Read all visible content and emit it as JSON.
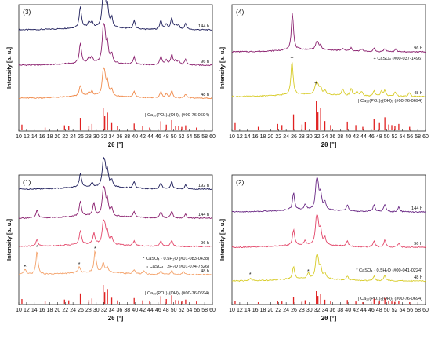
{
  "chart_data": [
    {
      "type": "line",
      "panel_label": "(3)",
      "xlabel": "2θ [°]",
      "ylabel": "Intensity [a. u.]",
      "xlim": [
        10,
        60
      ],
      "x_ticks": [
        "10",
        "12",
        "14",
        "16",
        "18",
        "20",
        "22",
        "24",
        "26",
        "28",
        "30",
        "32",
        "34",
        "36",
        "38",
        "40",
        "42",
        "44",
        "46",
        "48",
        "50",
        "52",
        "54",
        "56",
        "58",
        "60"
      ],
      "series": [
        {
          "name": "144 h",
          "color": "#1f1f5c",
          "peaks": [
            [
              25.9,
              28
            ],
            [
              28.1,
              6
            ],
            [
              28.9,
              7
            ],
            [
              31.8,
              38
            ],
            [
              32.2,
              30
            ],
            [
              32.9,
              24
            ],
            [
              34.0,
              12
            ],
            [
              39.8,
              10
            ],
            [
              46.7,
              12
            ],
            [
              48.1,
              7
            ],
            [
              49.5,
              14
            ],
            [
              50.5,
              6
            ],
            [
              51.3,
              5
            ],
            [
              53.1,
              8
            ]
          ]
        },
        {
          "name": "96 h",
          "color": "#8a1f6e",
          "peaks": [
            [
              25.9,
              26
            ],
            [
              28.1,
              6
            ],
            [
              28.9,
              7
            ],
            [
              31.8,
              36
            ],
            [
              32.2,
              28
            ],
            [
              32.9,
              22
            ],
            [
              34.0,
              11
            ],
            [
              39.8,
              9
            ],
            [
              46.7,
              11
            ],
            [
              48.1,
              6
            ],
            [
              49.5,
              13
            ],
            [
              50.5,
              6
            ],
            [
              51.3,
              5
            ],
            [
              53.1,
              7
            ]
          ]
        },
        {
          "name": "48 h",
          "color": "#f08a4b",
          "peaks": [
            [
              25.9,
              14
            ],
            [
              28.1,
              4
            ],
            [
              28.9,
              5
            ],
            [
              31.8,
              26
            ],
            [
              32.2,
              20
            ],
            [
              32.9,
              16
            ],
            [
              34.0,
              8
            ],
            [
              39.8,
              7
            ],
            [
              46.7,
              8
            ],
            [
              48.1,
              5
            ],
            [
              49.5,
              9
            ],
            [
              53.1,
              5
            ]
          ]
        }
      ],
      "reference": {
        "name": "Ca₁₀(PO₄)₆(OH)₂ (#00-76-0694)",
        "color": "#e02020",
        "x": [
          10.8,
          16.8,
          21.8,
          22.9,
          25.9,
          28.1,
          28.9,
          31.8,
          32.2,
          32.9,
          34.0,
          35.5,
          39.8,
          42.0,
          43.8,
          46.7,
          48.1,
          49.5,
          50.5,
          51.3,
          52.1,
          53.1,
          55.9
        ],
        "h": [
          0.25,
          0.12,
          0.22,
          0.18,
          0.55,
          0.2,
          0.28,
          1.0,
          0.62,
          0.78,
          0.32,
          0.18,
          0.3,
          0.18,
          0.12,
          0.4,
          0.25,
          0.45,
          0.2,
          0.18,
          0.15,
          0.22,
          0.12
        ]
      }
    },
    {
      "type": "line",
      "panel_label": "(4)",
      "xlabel": "2θ [°]",
      "ylabel": "Intensity [a. u.]",
      "xlim": [
        10,
        60
      ],
      "x_ticks": [
        "10",
        "12",
        "14",
        "16",
        "18",
        "20",
        "22",
        "24",
        "26",
        "28",
        "30",
        "32",
        "34",
        "36",
        "38",
        "40",
        "42",
        "44",
        "46",
        "48",
        "50",
        "52",
        "54",
        "56",
        "58",
        "60"
      ],
      "series": [
        {
          "name": "96 h",
          "color": "#8a1f6e",
          "peaks": [
            [
              25.6,
              48
            ],
            [
              31.8,
              7
            ],
            [
              32.2,
              6
            ],
            [
              32.9,
              5
            ],
            [
              38.6,
              3
            ],
            [
              40.8,
              4
            ],
            [
              43.5,
              3
            ],
            [
              46.7,
              4
            ],
            [
              49.5,
              4
            ],
            [
              52.3,
              3
            ]
          ]
        },
        {
          "name": "48 h",
          "color": "#d8cc2a",
          "peaks": [
            [
              25.5,
              44
            ],
            [
              31.7,
              12
            ],
            [
              32.2,
              9
            ],
            [
              32.9,
              8
            ],
            [
              34.0,
              5
            ],
            [
              38.6,
              8
            ],
            [
              40.8,
              9
            ],
            [
              42.3,
              5
            ],
            [
              43.5,
              6
            ],
            [
              46.7,
              7
            ],
            [
              48.6,
              6
            ],
            [
              49.5,
              8
            ],
            [
              52.2,
              6
            ],
            [
              55.8,
              5
            ]
          ]
        }
      ],
      "annotations": [
        "+ CaSO₄ (#00-037-1496)"
      ],
      "reference": {
        "name": "Ca₁₀(PO₄)₆(OH)₂ (#00-76-0694)",
        "color": "#e02020",
        "x": [
          10.8,
          16.8,
          21.8,
          22.9,
          25.9,
          28.1,
          28.9,
          31.8,
          32.2,
          32.9,
          34.0,
          35.5,
          39.8,
          42.0,
          43.8,
          46.7,
          48.1,
          49.5,
          50.5,
          51.3,
          52.1,
          53.1,
          55.9
        ],
        "h": [
          0.25,
          0.12,
          0.22,
          0.18,
          0.55,
          0.2,
          0.28,
          1.0,
          0.62,
          0.78,
          0.32,
          0.18,
          0.3,
          0.18,
          0.12,
          0.4,
          0.25,
          0.45,
          0.2,
          0.18,
          0.15,
          0.22,
          0.12
        ]
      }
    },
    {
      "type": "line",
      "panel_label": "(1)",
      "xlabel": "2θ [°]",
      "ylabel": "Intensity [a. u.]",
      "xlim": [
        10,
        60
      ],
      "x_ticks": [
        "10",
        "12",
        "14",
        "16",
        "18",
        "20",
        "22",
        "24",
        "26",
        "28",
        "30",
        "32",
        "34",
        "36",
        "38",
        "40",
        "42",
        "44",
        "46",
        "48",
        "50",
        "52",
        "54",
        "56",
        "58",
        "60"
      ],
      "series": [
        {
          "name": "192 h",
          "color": "#1f1f5c",
          "peaks": [
            [
              25.9,
              18
            ],
            [
              28.9,
              5
            ],
            [
              31.8,
              26
            ],
            [
              32.2,
              22
            ],
            [
              32.9,
              18
            ],
            [
              34.0,
              9
            ],
            [
              39.8,
              8
            ],
            [
              46.7,
              8
            ],
            [
              49.5,
              9
            ],
            [
              53.1,
              5
            ]
          ]
        },
        {
          "name": "144 h",
          "color": "#8a1f6e",
          "peaks": [
            [
              14.7,
              10
            ],
            [
              25.9,
              20
            ],
            [
              29.4,
              16
            ],
            [
              31.8,
              26
            ],
            [
              32.2,
              22
            ],
            [
              32.9,
              18
            ],
            [
              34.0,
              9
            ],
            [
              39.8,
              7
            ],
            [
              46.7,
              8
            ],
            [
              49.5,
              9
            ],
            [
              53.1,
              5
            ]
          ]
        },
        {
          "name": "96 h",
          "color": "#e3476a",
          "peaks": [
            [
              14.7,
              9
            ],
            [
              25.9,
              18
            ],
            [
              29.4,
              14
            ],
            [
              31.8,
              22
            ],
            [
              32.2,
              18
            ],
            [
              32.9,
              14
            ],
            [
              34.0,
              8
            ],
            [
              39.8,
              6
            ],
            [
              46.7,
              7
            ],
            [
              49.5,
              8
            ]
          ]
        },
        {
          "name": "48 h",
          "color": "#f4a36c",
          "peaks": [
            [
              11.6,
              7
            ],
            [
              14.7,
              30
            ],
            [
              25.6,
              8
            ],
            [
              29.7,
              28
            ],
            [
              31.8,
              12
            ],
            [
              32.9,
              7
            ],
            [
              39.8,
              5
            ],
            [
              42.3,
              4
            ],
            [
              46.7,
              5
            ],
            [
              49.5,
              5
            ],
            [
              52.5,
              4
            ]
          ]
        }
      ],
      "annotations": [
        "* CaSO₄ · 0.5H₂O (#01-083-0438)",
        "⁎ CaSO₄ · 2H₂O (#01-074-7326)"
      ],
      "reference": {
        "name": "Ca₁₀(PO₄)₆(OH)₂ (#00-76-0694)",
        "color": "#e02020",
        "x": [
          10.8,
          16.8,
          21.8,
          22.9,
          25.9,
          28.1,
          28.9,
          31.8,
          32.2,
          32.9,
          34.0,
          35.5,
          39.8,
          42.0,
          43.8,
          46.7,
          48.1,
          49.5,
          50.5,
          51.3,
          52.1,
          53.1,
          55.9
        ],
        "h": [
          0.25,
          0.12,
          0.22,
          0.18,
          0.55,
          0.2,
          0.28,
          1.0,
          0.62,
          0.78,
          0.32,
          0.18,
          0.3,
          0.18,
          0.12,
          0.4,
          0.25,
          0.45,
          0.2,
          0.18,
          0.15,
          0.22,
          0.12
        ]
      }
    },
    {
      "type": "line",
      "panel_label": "(2)",
      "xlabel": "2θ [°]",
      "ylabel": "Intensity [a. u.]",
      "xlim": [
        10,
        60
      ],
      "x_ticks": [
        "10",
        "12",
        "14",
        "16",
        "18",
        "20",
        "22",
        "24",
        "26",
        "28",
        "30",
        "32",
        "34",
        "36",
        "38",
        "40",
        "42",
        "44",
        "46",
        "48",
        "50",
        "52",
        "54",
        "56",
        "58",
        "60"
      ],
      "series": [
        {
          "name": "144 h",
          "color": "#6b2a86",
          "peaks": [
            [
              25.9,
              22
            ],
            [
              28.9,
              6
            ],
            [
              31.8,
              28
            ],
            [
              32.2,
              24
            ],
            [
              32.9,
              19
            ],
            [
              34.0,
              10
            ],
            [
              39.8,
              8
            ],
            [
              46.7,
              9
            ],
            [
              49.5,
              10
            ],
            [
              53.1,
              6
            ]
          ]
        },
        {
          "name": "96 h",
          "color": "#e3476a",
          "peaks": [
            [
              25.9,
              20
            ],
            [
              28.9,
              5
            ],
            [
              31.8,
              28
            ],
            [
              32.2,
              22
            ],
            [
              32.9,
              18
            ],
            [
              34.0,
              9
            ],
            [
              39.8,
              7
            ],
            [
              46.7,
              8
            ],
            [
              49.5,
              9
            ],
            [
              53.1,
              5
            ]
          ]
        },
        {
          "name": "48 h",
          "color": "#d8cc2a",
          "peaks": [
            [
              14.7,
              3
            ],
            [
              25.9,
              16
            ],
            [
              29.7,
              7
            ],
            [
              31.8,
              22
            ],
            [
              32.2,
              18
            ],
            [
              32.9,
              14
            ],
            [
              34.0,
              7
            ],
            [
              39.8,
              5
            ],
            [
              46.7,
              6
            ],
            [
              49.5,
              7
            ]
          ]
        }
      ],
      "annotations": [
        "* CaSO₄ · 0.5H₂O (#00-041-0224)"
      ],
      "reference": {
        "name": "Ca₁₀(PO₄)₆(OH)₂ (#00-76-0694)",
        "color": "#e02020",
        "x": [
          10.8,
          16.8,
          21.8,
          22.9,
          25.9,
          28.1,
          28.9,
          31.8,
          32.2,
          32.9,
          34.0,
          35.5,
          39.8,
          42.0,
          43.8,
          46.7,
          48.1,
          49.5,
          50.5,
          51.3,
          52.1,
          53.1,
          55.9
        ],
        "h": [
          0.25,
          0.12,
          0.22,
          0.18,
          0.55,
          0.2,
          0.28,
          1.0,
          0.62,
          0.78,
          0.32,
          0.18,
          0.3,
          0.18,
          0.12,
          0.4,
          0.25,
          0.45,
          0.2,
          0.18,
          0.15,
          0.22,
          0.12
        ]
      }
    }
  ]
}
